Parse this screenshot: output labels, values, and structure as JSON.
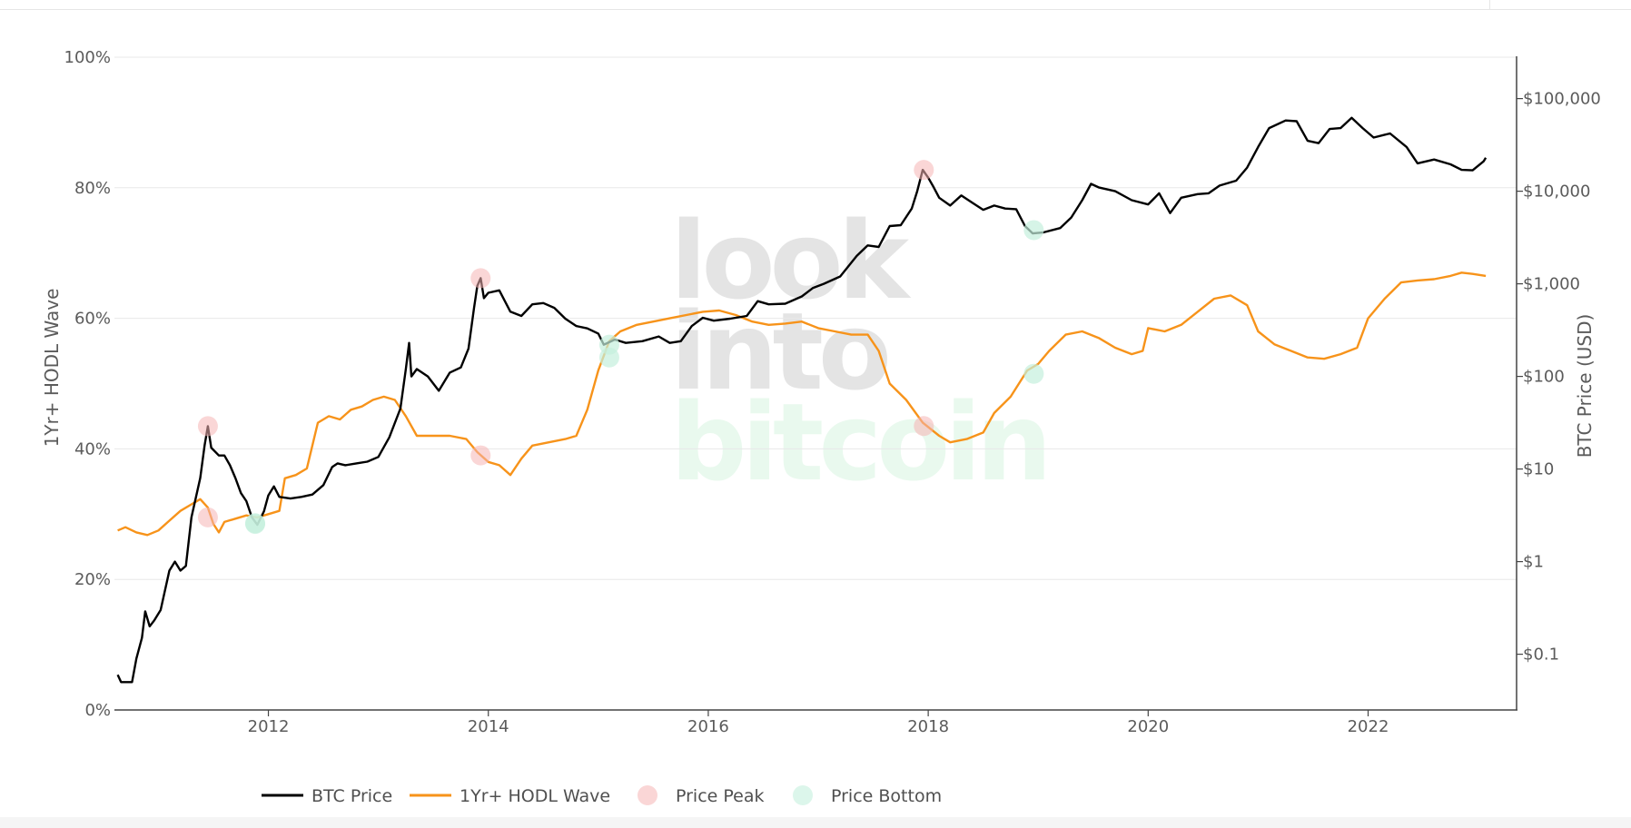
{
  "chart_data": {
    "type": "line",
    "watermark": [
      "look",
      "into",
      "bitcoin"
    ],
    "left_axis": {
      "title": "1Yr+ HODL Wave",
      "ticks": [
        {
          "value": 0,
          "label": "0%"
        },
        {
          "value": 20,
          "label": "20%"
        },
        {
          "value": 40,
          "label": "40%"
        },
        {
          "value": 60,
          "label": "60%"
        },
        {
          "value": 80,
          "label": "80%"
        },
        {
          "value": 100,
          "label": "100%"
        }
      ],
      "range": [
        0,
        100
      ]
    },
    "right_axis": {
      "title": "BTC Price (USD)",
      "scale": "log",
      "range": [
        0.025,
        280000
      ],
      "ticks": [
        {
          "value": 0.1,
          "label": "$0.1"
        },
        {
          "value": 1,
          "label": "$1"
        },
        {
          "value": 10,
          "label": "$10"
        },
        {
          "value": 100,
          "label": "$100"
        },
        {
          "value": 1000,
          "label": "$1,000"
        },
        {
          "value": 10000,
          "label": "$10,000"
        },
        {
          "value": 100000,
          "label": "$100,000"
        }
      ]
    },
    "x_axis": {
      "range": [
        2010.6,
        2023.35
      ],
      "ticks": [
        {
          "value": 2012,
          "label": "2012"
        },
        {
          "value": 2014,
          "label": "2014"
        },
        {
          "value": 2016,
          "label": "2016"
        },
        {
          "value": 2018,
          "label": "2018"
        },
        {
          "value": 2020,
          "label": "2020"
        },
        {
          "value": 2022,
          "label": "2022"
        }
      ]
    },
    "grid": true,
    "legend_position": "bottom-left",
    "series": [
      {
        "name": "BTC Price",
        "axis": "right",
        "color": "#000000",
        "points": [
          [
            2010.63,
            0.06
          ],
          [
            2010.66,
            0.05
          ],
          [
            2010.76,
            0.05
          ],
          [
            2010.8,
            0.09
          ],
          [
            2010.85,
            0.15
          ],
          [
            2010.88,
            0.29
          ],
          [
            2010.92,
            0.2
          ],
          [
            2010.96,
            0.23
          ],
          [
            2011.02,
            0.3
          ],
          [
            2011.1,
            0.8
          ],
          [
            2011.15,
            1.0
          ],
          [
            2011.2,
            0.8
          ],
          [
            2011.25,
            0.9
          ],
          [
            2011.3,
            3.0
          ],
          [
            2011.38,
            8.0
          ],
          [
            2011.42,
            18.0
          ],
          [
            2011.45,
            29.0
          ],
          [
            2011.48,
            17.0
          ],
          [
            2011.55,
            14.0
          ],
          [
            2011.6,
            14.0
          ],
          [
            2011.65,
            11.0
          ],
          [
            2011.7,
            8.0
          ],
          [
            2011.75,
            5.5
          ],
          [
            2011.8,
            4.5
          ],
          [
            2011.85,
            3.0
          ],
          [
            2011.9,
            2.5
          ],
          [
            2011.96,
            3.5
          ],
          [
            2012.0,
            5.2
          ],
          [
            2012.05,
            6.5
          ],
          [
            2012.1,
            5.0
          ],
          [
            2012.2,
            4.8
          ],
          [
            2012.3,
            5.0
          ],
          [
            2012.4,
            5.3
          ],
          [
            2012.5,
            6.7
          ],
          [
            2012.58,
            10.5
          ],
          [
            2012.63,
            11.5
          ],
          [
            2012.7,
            11.0
          ],
          [
            2012.8,
            11.5
          ],
          [
            2012.9,
            12.0
          ],
          [
            2013.0,
            13.5
          ],
          [
            2013.1,
            22.0
          ],
          [
            2013.2,
            45.0
          ],
          [
            2013.25,
            120.0
          ],
          [
            2013.28,
            230.0
          ],
          [
            2013.3,
            100.0
          ],
          [
            2013.35,
            120.0
          ],
          [
            2013.45,
            100.0
          ],
          [
            2013.55,
            70.0
          ],
          [
            2013.65,
            110.0
          ],
          [
            2013.75,
            125.0
          ],
          [
            2013.82,
            200.0
          ],
          [
            2013.87,
            550.0
          ],
          [
            2013.9,
            950.0
          ],
          [
            2013.93,
            1150.0
          ],
          [
            2013.96,
            700.0
          ],
          [
            2014.0,
            800.0
          ],
          [
            2014.1,
            850.0
          ],
          [
            2014.2,
            500.0
          ],
          [
            2014.3,
            450.0
          ],
          [
            2014.4,
            600.0
          ],
          [
            2014.5,
            620.0
          ],
          [
            2014.6,
            550.0
          ],
          [
            2014.7,
            420.0
          ],
          [
            2014.8,
            350.0
          ],
          [
            2014.9,
            330.0
          ],
          [
            2015.0,
            290.0
          ],
          [
            2015.05,
            220.0
          ],
          [
            2015.15,
            250.0
          ],
          [
            2015.25,
            230.0
          ],
          [
            2015.4,
            240.0
          ],
          [
            2015.55,
            270.0
          ],
          [
            2015.65,
            230.0
          ],
          [
            2015.75,
            240.0
          ],
          [
            2015.85,
            350.0
          ],
          [
            2015.95,
            430.0
          ],
          [
            2016.05,
            400.0
          ],
          [
            2016.2,
            420.0
          ],
          [
            2016.35,
            450.0
          ],
          [
            2016.45,
            650.0
          ],
          [
            2016.55,
            600.0
          ],
          [
            2016.7,
            610.0
          ],
          [
            2016.85,
            730.0
          ],
          [
            2016.95,
            900.0
          ],
          [
            2017.05,
            1000.0
          ],
          [
            2017.2,
            1200.0
          ],
          [
            2017.35,
            2000.0
          ],
          [
            2017.45,
            2600.0
          ],
          [
            2017.55,
            2500.0
          ],
          [
            2017.65,
            4200.0
          ],
          [
            2017.75,
            4300.0
          ],
          [
            2017.85,
            6500.0
          ],
          [
            2017.9,
            10000.0
          ],
          [
            2017.95,
            17000.0
          ],
          [
            2018.0,
            14000.0
          ],
          [
            2018.05,
            11000.0
          ],
          [
            2018.1,
            8500.0
          ],
          [
            2018.2,
            7000.0
          ],
          [
            2018.3,
            9000.0
          ],
          [
            2018.4,
            7500.0
          ],
          [
            2018.5,
            6300.0
          ],
          [
            2018.6,
            7000.0
          ],
          [
            2018.7,
            6500.0
          ],
          [
            2018.8,
            6400.0
          ],
          [
            2018.88,
            4200.0
          ],
          [
            2018.95,
            3500.0
          ],
          [
            2019.05,
            3600.0
          ],
          [
            2019.2,
            4000.0
          ],
          [
            2019.3,
            5200.0
          ],
          [
            2019.4,
            8000.0
          ],
          [
            2019.48,
            12000.0
          ],
          [
            2019.55,
            11000.0
          ],
          [
            2019.7,
            10000.0
          ],
          [
            2019.85,
            8000.0
          ],
          [
            2020.0,
            7200.0
          ],
          [
            2020.1,
            9500.0
          ],
          [
            2020.2,
            5800.0
          ],
          [
            2020.3,
            8500.0
          ],
          [
            2020.45,
            9300.0
          ],
          [
            2020.55,
            9500.0
          ],
          [
            2020.65,
            11500.0
          ],
          [
            2020.8,
            13000.0
          ],
          [
            2020.9,
            18000.0
          ],
          [
            2021.0,
            30000.0
          ],
          [
            2021.1,
            48000.0
          ],
          [
            2021.25,
            58000.0
          ],
          [
            2021.35,
            57000.0
          ],
          [
            2021.45,
            35000.0
          ],
          [
            2021.55,
            33000.0
          ],
          [
            2021.65,
            47000.0
          ],
          [
            2021.75,
            48000.0
          ],
          [
            2021.85,
            62000.0
          ],
          [
            2021.95,
            48000.0
          ],
          [
            2022.05,
            38000.0
          ],
          [
            2022.2,
            42000.0
          ],
          [
            2022.35,
            30000.0
          ],
          [
            2022.45,
            20000.0
          ],
          [
            2022.6,
            22000.0
          ],
          [
            2022.75,
            19500.0
          ],
          [
            2022.85,
            17000.0
          ],
          [
            2022.95,
            16800.0
          ],
          [
            2023.05,
            21000.0
          ],
          [
            2023.07,
            23000.0
          ]
        ]
      },
      {
        "name": "1Yr+ HODL Wave",
        "axis": "left",
        "color": "#f7931a",
        "points": [
          [
            2010.63,
            27.5
          ],
          [
            2010.7,
            28.0
          ],
          [
            2010.8,
            27.2
          ],
          [
            2010.9,
            26.8
          ],
          [
            2011.0,
            27.5
          ],
          [
            2011.1,
            29.0
          ],
          [
            2011.2,
            30.5
          ],
          [
            2011.3,
            31.5
          ],
          [
            2011.38,
            32.3
          ],
          [
            2011.45,
            31.0
          ],
          [
            2011.5,
            28.5
          ],
          [
            2011.55,
            27.2
          ],
          [
            2011.6,
            28.8
          ],
          [
            2011.7,
            29.3
          ],
          [
            2011.8,
            29.8
          ],
          [
            2011.9,
            29.5
          ],
          [
            2012.0,
            30.0
          ],
          [
            2012.1,
            30.5
          ],
          [
            2012.15,
            35.5
          ],
          [
            2012.25,
            36.0
          ],
          [
            2012.35,
            37.0
          ],
          [
            2012.45,
            44.0
          ],
          [
            2012.55,
            45.0
          ],
          [
            2012.65,
            44.5
          ],
          [
            2012.75,
            46.0
          ],
          [
            2012.85,
            46.5
          ],
          [
            2012.95,
            47.5
          ],
          [
            2013.05,
            48.0
          ],
          [
            2013.15,
            47.5
          ],
          [
            2013.25,
            45.0
          ],
          [
            2013.35,
            42.0
          ],
          [
            2013.5,
            42.0
          ],
          [
            2013.65,
            42.0
          ],
          [
            2013.8,
            41.5
          ],
          [
            2013.9,
            39.5
          ],
          [
            2014.0,
            38.0
          ],
          [
            2014.1,
            37.5
          ],
          [
            2014.2,
            36.0
          ],
          [
            2014.3,
            38.5
          ],
          [
            2014.4,
            40.5
          ],
          [
            2014.55,
            41.0
          ],
          [
            2014.7,
            41.5
          ],
          [
            2014.8,
            42.0
          ],
          [
            2014.9,
            46.0
          ],
          [
            2015.0,
            52.0
          ],
          [
            2015.1,
            56.5
          ],
          [
            2015.2,
            58.0
          ],
          [
            2015.35,
            59.0
          ],
          [
            2015.5,
            59.5
          ],
          [
            2015.65,
            60.0
          ],
          [
            2015.8,
            60.5
          ],
          [
            2015.95,
            61.0
          ],
          [
            2016.1,
            61.2
          ],
          [
            2016.25,
            60.5
          ],
          [
            2016.4,
            59.5
          ],
          [
            2016.55,
            59.0
          ],
          [
            2016.7,
            59.2
          ],
          [
            2016.85,
            59.5
          ],
          [
            2017.0,
            58.5
          ],
          [
            2017.15,
            58.0
          ],
          [
            2017.3,
            57.5
          ],
          [
            2017.45,
            57.5
          ],
          [
            2017.55,
            55.0
          ],
          [
            2017.65,
            50.0
          ],
          [
            2017.8,
            47.5
          ],
          [
            2017.95,
            44.0
          ],
          [
            2018.1,
            42.0
          ],
          [
            2018.2,
            41.0
          ],
          [
            2018.35,
            41.5
          ],
          [
            2018.5,
            42.5
          ],
          [
            2018.6,
            45.5
          ],
          [
            2018.75,
            48.0
          ],
          [
            2018.9,
            52.0
          ],
          [
            2019.0,
            53.0
          ],
          [
            2019.1,
            55.0
          ],
          [
            2019.25,
            57.5
          ],
          [
            2019.4,
            58.0
          ],
          [
            2019.55,
            57.0
          ],
          [
            2019.7,
            55.5
          ],
          [
            2019.85,
            54.5
          ],
          [
            2019.95,
            55.0
          ],
          [
            2020.0,
            58.5
          ],
          [
            2020.15,
            58.0
          ],
          [
            2020.3,
            59.0
          ],
          [
            2020.45,
            61.0
          ],
          [
            2020.6,
            63.0
          ],
          [
            2020.75,
            63.5
          ],
          [
            2020.9,
            62.0
          ],
          [
            2021.0,
            58.0
          ],
          [
            2021.15,
            56.0
          ],
          [
            2021.3,
            55.0
          ],
          [
            2021.45,
            54.0
          ],
          [
            2021.6,
            53.8
          ],
          [
            2021.75,
            54.5
          ],
          [
            2021.9,
            55.5
          ],
          [
            2022.0,
            60.0
          ],
          [
            2022.15,
            63.0
          ],
          [
            2022.3,
            65.5
          ],
          [
            2022.45,
            65.8
          ],
          [
            2022.6,
            66.0
          ],
          [
            2022.75,
            66.5
          ],
          [
            2022.85,
            67.0
          ],
          [
            2022.95,
            66.8
          ],
          [
            2023.07,
            66.5
          ]
        ]
      },
      {
        "name": "Price Peak",
        "axis": "mixed",
        "color": "#f6b4b4",
        "points": [
          {
            "x": 2011.45,
            "axis": "right",
            "y": 29.0
          },
          {
            "x": 2011.45,
            "axis": "left",
            "y": 29.5
          },
          {
            "x": 2013.93,
            "axis": "right",
            "y": 1150.0
          },
          {
            "x": 2013.93,
            "axis": "left",
            "y": 39.0
          },
          {
            "x": 2017.96,
            "axis": "right",
            "y": 17000.0
          },
          {
            "x": 2017.96,
            "axis": "left",
            "y": 43.5
          }
        ]
      },
      {
        "name": "Price Bottom",
        "axis": "mixed",
        "color": "#c5f0dd",
        "points": [
          {
            "x": 2011.88,
            "axis": "right",
            "y": 2.6
          },
          {
            "x": 2011.88,
            "axis": "left",
            "y": 28.5
          },
          {
            "x": 2015.1,
            "axis": "right",
            "y": 220.0
          },
          {
            "x": 2015.1,
            "axis": "left",
            "y": 54.0
          },
          {
            "x": 2018.96,
            "axis": "right",
            "y": 3800.0
          },
          {
            "x": 2018.96,
            "axis": "left",
            "y": 51.5
          }
        ]
      }
    ]
  }
}
